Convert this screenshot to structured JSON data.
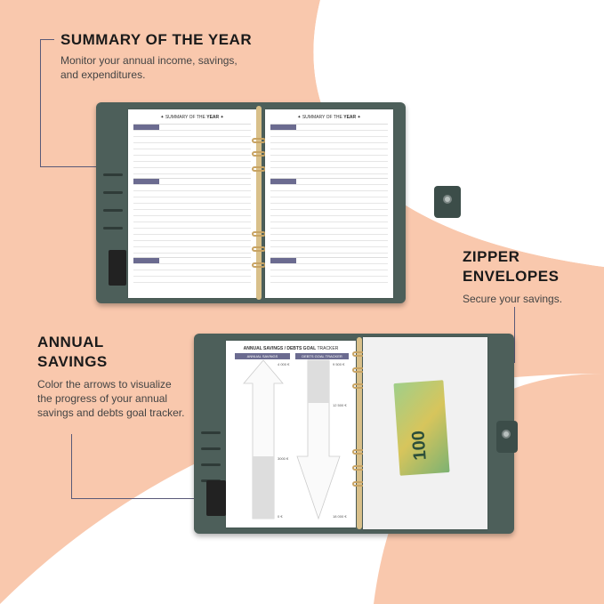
{
  "colors": {
    "peach": "#f9c8ad",
    "accent": "#5a5a78",
    "binder": "#4d5f5a"
  },
  "sections": [
    {
      "title": "SUMMARY OF THE YEAR",
      "description": "Monitor your annual income, savings, and expenditures."
    },
    {
      "title": "ZIPPER ENVELOPES",
      "description": "Secure your savings."
    },
    {
      "title": "ANNUAL SAVINGS",
      "description": "Color the arrows to visualize the progress of your annual savings and debts goal tracker."
    }
  ],
  "summary_page": {
    "title_prefix": "SUMMARY OF THE",
    "title_bold": "YEAR"
  },
  "tracker_page": {
    "title_bold": "ANNUAL SAVINGS / DEBTS GOAL",
    "title_rest": "TRACKER",
    "left_header": "ANNUAL SAVINGS",
    "right_header": "DEBTS GOAL TRACKER",
    "labels": [
      "4 000 €",
      "3000 €",
      "0 €",
      "9 500 €",
      "12 500 €",
      "18 000 €"
    ],
    "savings_progress_percent": 30,
    "debt_progress_percent": 30
  },
  "banknote": {
    "value": "100"
  }
}
